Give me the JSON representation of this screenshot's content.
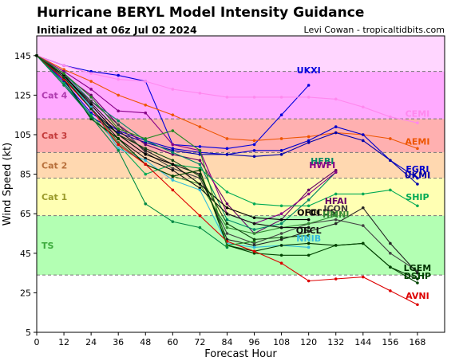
{
  "header": {
    "title": "Hurricane BERYL Model Intensity Guidance",
    "subtitle": "Initialized at 06z Jul 02 2024",
    "credit": "Levi Cowan - tropicaltidbits.com"
  },
  "chart_data": {
    "type": "line",
    "xlabel": "Forecast Hour",
    "ylabel": "Wind Speed (kt)",
    "xlim": [
      0,
      180
    ],
    "ylim": [
      5,
      155
    ],
    "xticks": [
      0,
      12,
      24,
      36,
      48,
      60,
      72,
      84,
      96,
      108,
      120,
      132,
      144,
      156,
      168
    ],
    "yticks": [
      5,
      25,
      45,
      65,
      85,
      105,
      125,
      145
    ],
    "bands": [
      {
        "label": "",
        "from": 137,
        "to": 155,
        "color": "#ffd6ff"
      },
      {
        "label": "Cat 4",
        "from": 113,
        "to": 137,
        "color": "#ffaaff",
        "label_color": "#b03cb0"
      },
      {
        "label": "Cat 3",
        "from": 96,
        "to": 113,
        "color": "#ffb0b0",
        "label_color": "#c43c3c"
      },
      {
        "label": "Cat 2",
        "from": 83,
        "to": 96,
        "color": "#ffd8b0",
        "label_color": "#b8703c"
      },
      {
        "label": "Cat 1",
        "from": 64,
        "to": 83,
        "color": "#ffffb3",
        "label_color": "#9a9a2a"
      },
      {
        "label": "TS",
        "from": 34,
        "to": 64,
        "color": "#b3ffb3",
        "label_color": "#3caa3c"
      },
      {
        "label": "",
        "from": 5,
        "to": 34,
        "color": "#ffffff"
      }
    ],
    "series": [
      {
        "name": "UKXI",
        "color": "#0000dd",
        "x": [
          0,
          12,
          24,
          36,
          48,
          60,
          72,
          84,
          96,
          108,
          120
        ],
        "y": [
          145,
          140,
          137,
          135,
          132,
          100,
          99,
          98,
          100,
          115,
          130
        ],
        "label_x": 120,
        "label_y": 136
      },
      {
        "name": "CEMI",
        "color": "#ff88ee",
        "x": [
          0,
          12,
          24,
          36,
          48,
          60,
          72,
          84,
          96,
          108,
          120,
          132,
          144,
          156,
          168
        ],
        "y": [
          145,
          140,
          136,
          133,
          132,
          128,
          126,
          124,
          124,
          124,
          124,
          123,
          119,
          114,
          111
        ],
        "label_x": 168,
        "label_y": 114
      },
      {
        "name": "AEMI",
        "color": "#ee5500",
        "x": [
          0,
          12,
          24,
          36,
          48,
          60,
          72,
          84,
          96,
          108,
          120,
          132,
          144,
          156,
          168
        ],
        "y": [
          145,
          138,
          132,
          125,
          120,
          115,
          109,
          103,
          102,
          103,
          104,
          106,
          105,
          103,
          98
        ],
        "label_x": 168,
        "label_y": 100
      },
      {
        "name": "EGRI",
        "color": "#0000cc",
        "x": [
          0,
          12,
          24,
          36,
          48,
          60,
          72,
          84,
          96,
          108,
          120,
          132,
          144,
          156,
          168
        ],
        "y": [
          145,
          132,
          116,
          107,
          102,
          98,
          96,
          95,
          97,
          97,
          102,
          109,
          105,
          92,
          83
        ],
        "label_x": 168,
        "label_y": 86
      },
      {
        "name": "UKMI",
        "color": "#0000aa",
        "x": [
          0,
          12,
          24,
          36,
          48,
          60,
          72,
          84,
          96,
          108,
          120,
          132,
          144,
          156,
          168
        ],
        "y": [
          145,
          131,
          114,
          106,
          101,
          97,
          95,
          95,
          94,
          95,
          101,
          106,
          102,
          92,
          80
        ],
        "label_x": 168,
        "label_y": 83
      },
      {
        "name": "HFAI",
        "color": "#660066",
        "x": [
          0,
          12,
          24,
          36,
          48,
          60,
          72,
          84,
          96,
          108,
          120,
          132
        ],
        "y": [
          145,
          135,
          125,
          110,
          100,
          95,
          92,
          70,
          55,
          62,
          77,
          87
        ],
        "label_x": 132,
        "label_y": 70
      },
      {
        "name": "HFBI",
        "color": "#008866",
        "x": [
          0,
          12,
          24,
          36,
          48,
          60,
          72,
          84,
          96,
          108,
          120,
          132
        ],
        "y": [
          145,
          136,
          122,
          112,
          102,
          96,
          90,
          62,
          57,
          60,
          72,
          86
        ],
        "label_x": 126,
        "label_y": 90
      },
      {
        "name": "HWFI",
        "color": "#880088",
        "x": [
          0,
          12,
          24,
          36,
          48,
          60,
          72,
          84,
          96,
          108,
          120,
          132
        ],
        "y": [
          145,
          137,
          128,
          117,
          116,
          100,
          97,
          65,
          60,
          65,
          75,
          86
        ],
        "label_x": 126,
        "label_y": 88
      },
      {
        "name": "SHIP",
        "color": "#00aa55",
        "x": [
          0,
          12,
          24,
          36,
          48,
          60,
          72,
          84,
          96,
          108,
          120,
          132,
          144,
          156,
          168
        ],
        "y": [
          145,
          131,
          115,
          100,
          85,
          90,
          88,
          76,
          70,
          69,
          69,
          75,
          75,
          77,
          69
        ],
        "label_x": 168,
        "label_y": 72
      },
      {
        "name": "ICON",
        "color": "#444444",
        "x": [
          0,
          12,
          24,
          36,
          48,
          60,
          72,
          84,
          96,
          108,
          120,
          132,
          144,
          156,
          168
        ],
        "y": [
          145,
          134,
          122,
          110,
          96,
          88,
          83,
          55,
          50,
          55,
          60,
          62,
          59,
          45,
          36
        ],
        "label_x": 132,
        "label_y": 66
      },
      {
        "name": "OCD5",
        "color": "#222222",
        "x": [
          0,
          12,
          24,
          36,
          48,
          60,
          72,
          84,
          96,
          108,
          120,
          132,
          144,
          156,
          168
        ],
        "y": [
          145,
          135,
          121,
          107,
          97,
          90,
          85,
          52,
          49,
          52,
          56,
          60,
          68,
          50,
          35
        ],
        "label_x": 126,
        "label_y": 64
      },
      {
        "name": "HMNI",
        "color": "#338833",
        "x": [
          0,
          12,
          24,
          36,
          48,
          60,
          72,
          84,
          96,
          108,
          120,
          132
        ],
        "y": [
          145,
          135,
          119,
          101,
          90,
          84,
          80,
          58,
          55,
          58,
          60,
          64
        ],
        "label_x": 132,
        "label_y": 63
      },
      {
        "name": "OFCI",
        "color": "#000000",
        "x": [
          0,
          12,
          24,
          36,
          48,
          60,
          72,
          84,
          96,
          108,
          120
        ],
        "y": [
          145,
          135,
          120,
          105,
          95,
          90,
          80,
          68,
          63,
          62,
          62
        ],
        "label_x": 120,
        "label_y": 64
      },
      {
        "name": "OFCL",
        "color": "#111111",
        "x": [
          0,
          12,
          24,
          36,
          48,
          60,
          72,
          84,
          96,
          108,
          120
        ],
        "y": [
          145,
          134,
          118,
          103,
          93,
          87,
          78,
          65,
          60,
          58,
          58
        ],
        "label_x": 120,
        "label_y": 55
      },
      {
        "name": "NNIB",
        "color": "#33bbdd",
        "x": [
          0,
          12,
          24,
          36,
          48,
          60,
          72,
          84,
          96,
          108,
          120
        ],
        "y": [
          145,
          134,
          119,
          98,
          92,
          82,
          77,
          50,
          48,
          49,
          48
        ],
        "label_x": 120,
        "label_y": 51
      },
      {
        "name": "LGEM",
        "color": "#003300",
        "x": [
          0,
          12,
          24,
          36,
          48,
          60,
          72,
          84,
          96,
          108,
          120,
          132,
          144,
          156,
          168
        ],
        "y": [
          145,
          133,
          113,
          103,
          90,
          84,
          87,
          49,
          46,
          49,
          50,
          49,
          50,
          38,
          32
        ],
        "label_x": 168,
        "label_y": 36
      },
      {
        "name": "DSHP",
        "color": "#004400",
        "x": [
          0,
          12,
          24,
          36,
          48,
          60,
          72,
          84,
          96,
          108,
          120,
          132,
          144,
          156,
          168
        ],
        "y": [
          145,
          133,
          113,
          103,
          90,
          84,
          87,
          49,
          45,
          44,
          44,
          49,
          50,
          38,
          30
        ],
        "label_x": 168,
        "label_y": 32
      },
      {
        "name": "AVNI",
        "color": "#dd0000",
        "x": [
          0,
          12,
          24,
          36,
          48,
          60,
          72,
          84,
          96,
          108,
          120,
          132,
          144,
          156,
          168
        ],
        "y": [
          145,
          133,
          118,
          100,
          90,
          77,
          64,
          51,
          46,
          40,
          31,
          32,
          33,
          26,
          19
        ],
        "label_x": 168,
        "label_y": 22
      },
      {
        "name": "",
        "color": "#008844",
        "x": [
          0,
          12,
          24,
          36,
          48,
          60,
          72,
          84
        ],
        "y": [
          145,
          130,
          114,
          97,
          70,
          61,
          58,
          48
        ],
        "label_x": null,
        "label_y": null
      },
      {
        "name": "",
        "color": "#228822",
        "x": [
          0,
          12,
          24,
          36,
          48,
          60,
          72,
          84,
          96
        ],
        "y": [
          145,
          136,
          124,
          108,
          103,
          107,
          97,
          49,
          51
        ],
        "label_x": null,
        "label_y": null
      },
      {
        "name": "",
        "color": "#114411",
        "x": [
          0,
          12,
          24,
          36,
          48,
          60,
          72,
          84,
          96,
          108,
          120
        ],
        "y": [
          145,
          134,
          118,
          105,
          98,
          92,
          84,
          60,
          52,
          53,
          54
        ],
        "label_x": null,
        "label_y": null
      }
    ]
  }
}
